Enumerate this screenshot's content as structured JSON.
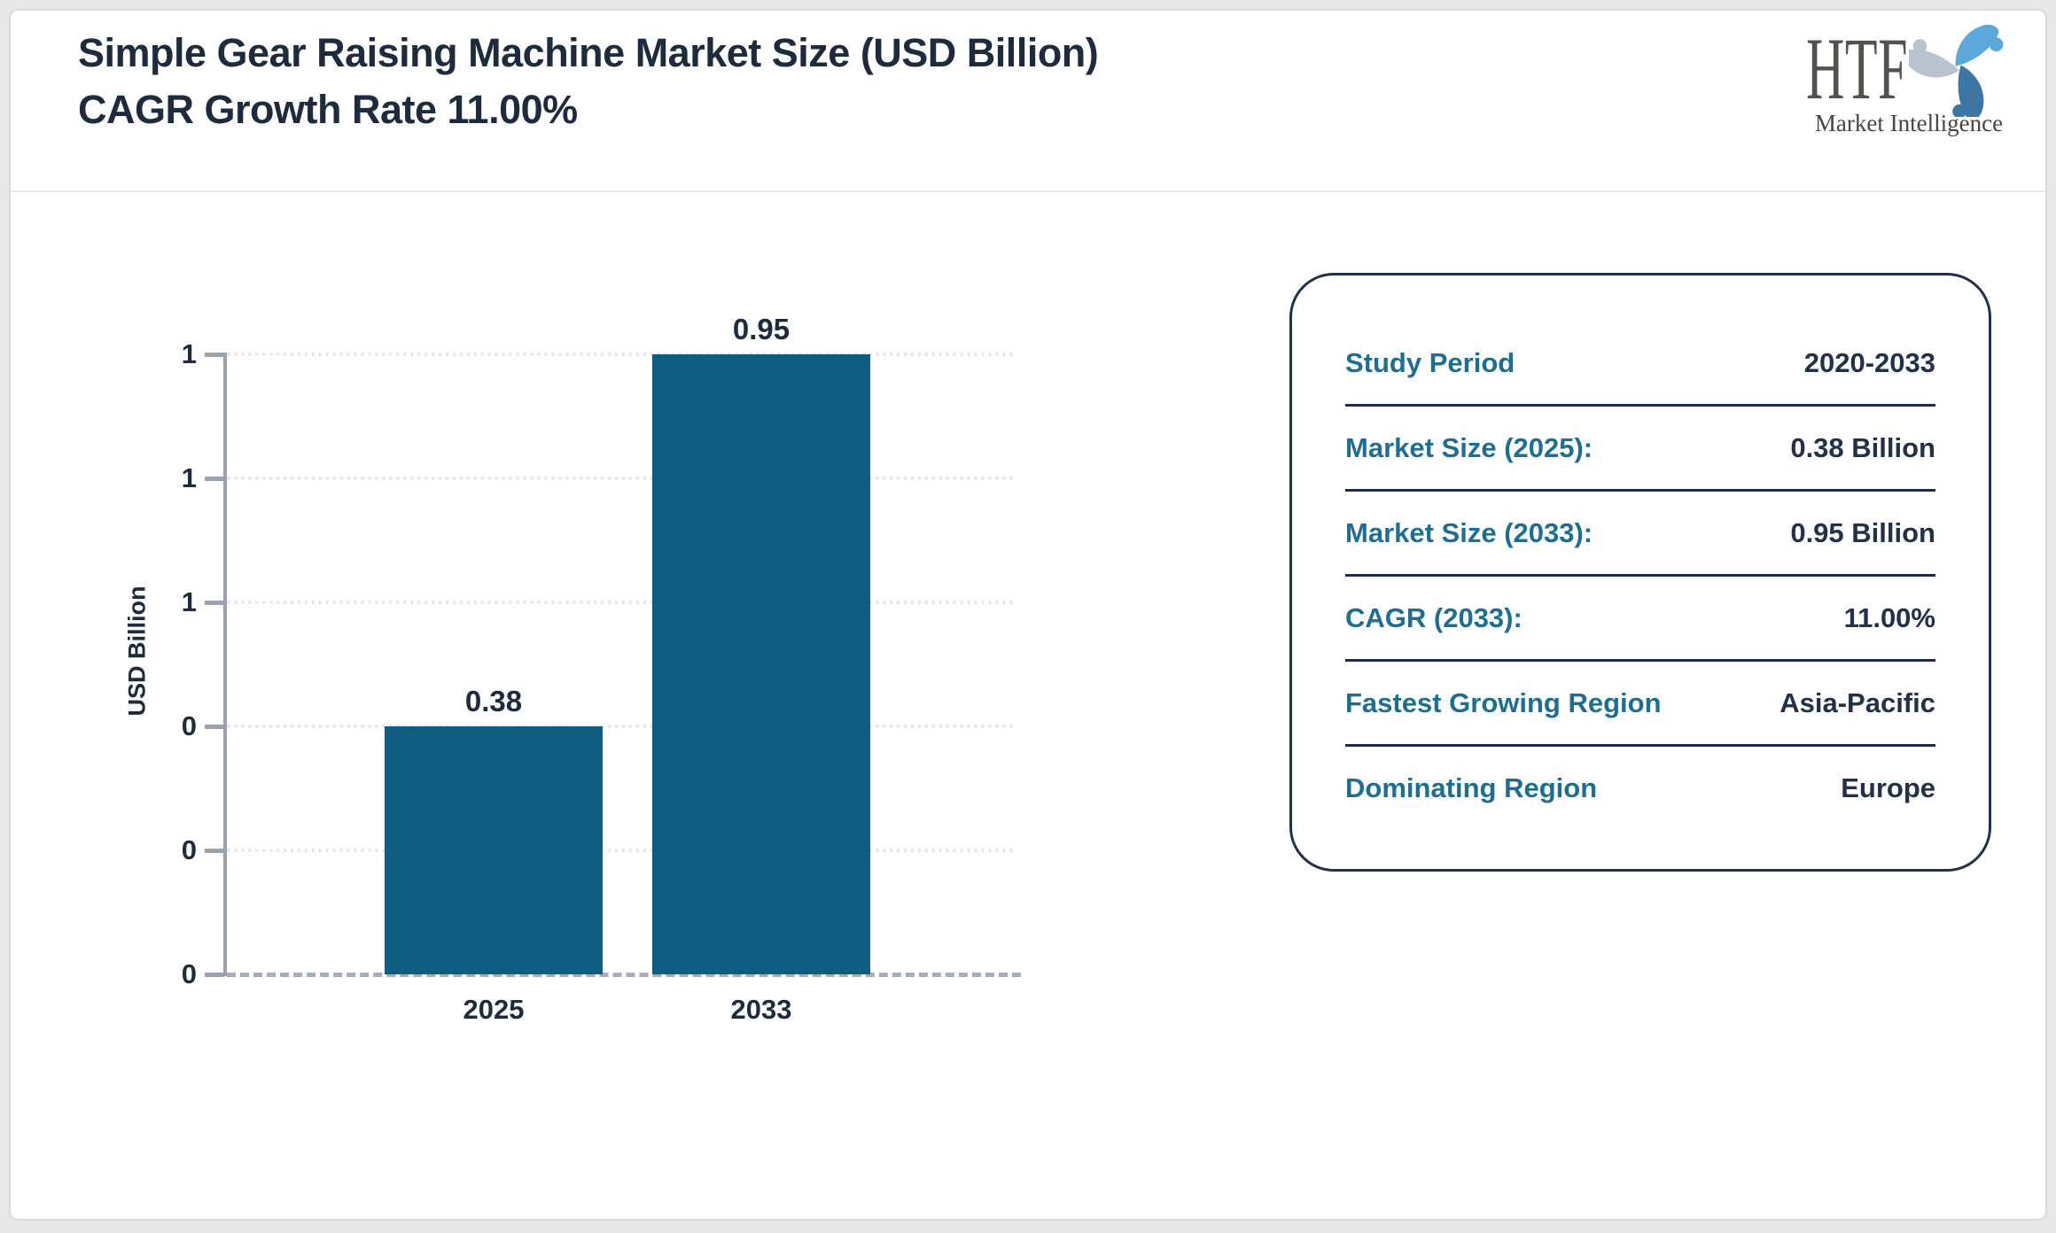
{
  "header": {
    "title": "Simple Gear Raising Machine Market Size (USD Billion) CAGR Growth Rate 11.00%",
    "logo": {
      "text": "HTF",
      "subtext": "Market Intelligence"
    }
  },
  "chart_data": {
    "type": "bar",
    "title": "Simple Gear Raising Machine Market Size (USD Billion) CAGR Growth Rate 11.00%",
    "categories": [
      "2025",
      "2033"
    ],
    "values": [
      0.38,
      0.95
    ],
    "value_labels": [
      "0.38",
      "0.95"
    ],
    "xlabel": "",
    "ylabel": "USD Billion",
    "ylim": [
      0,
      0.95
    ],
    "y_ticks": [
      0,
      0.19,
      0.38,
      0.57,
      0.76,
      0.95
    ],
    "y_tick_labels_top_to_bottom": [
      "1",
      "1",
      "1",
      "0",
      "0",
      "0"
    ],
    "grid": true,
    "legend": false,
    "bar_color": "#0e5e82"
  },
  "info_card": {
    "rows": [
      {
        "label": "Study Period",
        "value": "2020-2033"
      },
      {
        "label": "Market Size (2025):",
        "value": "0.38 Billion"
      },
      {
        "label": "Market Size (2033):",
        "value": "0.95 Billion"
      },
      {
        "label": "CAGR (2033):",
        "value": "11.00%"
      },
      {
        "label": "Fastest Growing Region",
        "value": "Asia-Pacific"
      },
      {
        "label": "Dominating Region",
        "value": "Europe"
      }
    ]
  },
  "colors": {
    "accent_teal": "#1d6f92",
    "dark_navy": "#22304a",
    "bar": "#0e5e82",
    "axis_gray": "#9aa2ad",
    "grid_gray": "#e4e6e9"
  }
}
